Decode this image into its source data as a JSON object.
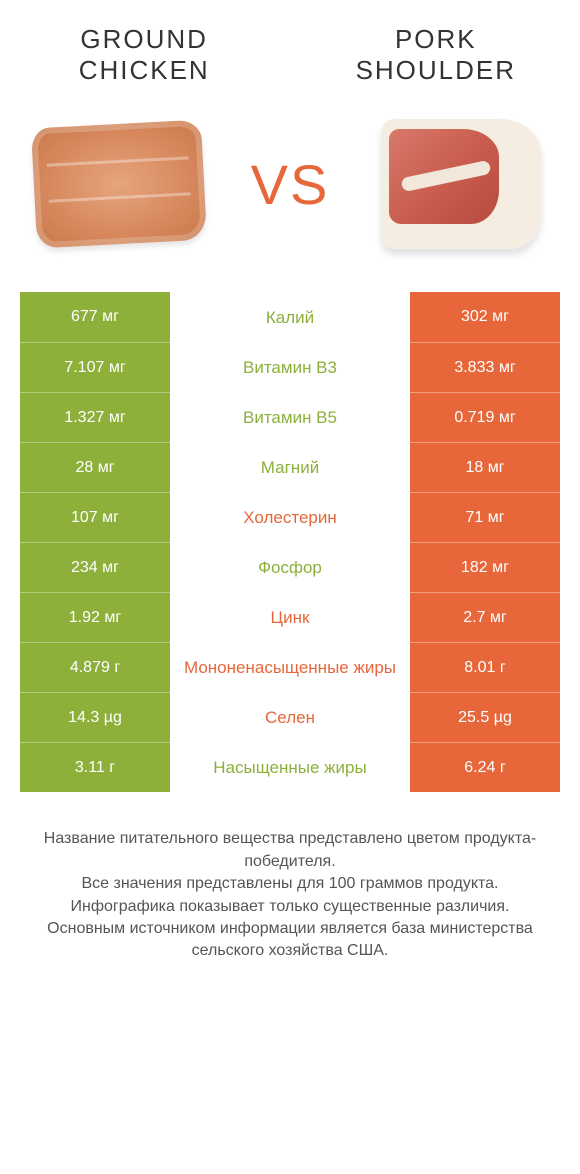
{
  "left_title": "Ground chicken",
  "right_title": "Pork shoulder",
  "vs": "VS",
  "colors": {
    "green": "#8db03b",
    "orange": "#e7673a",
    "page_bg": "#ffffff",
    "title_text": "#333333",
    "foot_text": "#555555"
  },
  "typography": {
    "title_fontsize": 26,
    "vs_fontsize": 56,
    "cell_fontsize": 16,
    "label_fontsize": 17,
    "foot_fontsize": 16
  },
  "rows": [
    {
      "left": "677 мг",
      "label": "Калий",
      "label_color": "green",
      "right": "302 мг"
    },
    {
      "left": "7.107 мг",
      "label": "Витамин B3",
      "label_color": "green",
      "right": "3.833 мг"
    },
    {
      "left": "1.327 мг",
      "label": "Витамин B5",
      "label_color": "green",
      "right": "0.719 мг"
    },
    {
      "left": "28 мг",
      "label": "Магний",
      "label_color": "green",
      "right": "18 мг"
    },
    {
      "left": "107 мг",
      "label": "Холестерин",
      "label_color": "orange",
      "right": "71 мг"
    },
    {
      "left": "234 мг",
      "label": "Фосфор",
      "label_color": "green",
      "right": "182 мг"
    },
    {
      "left": "1.92 мг",
      "label": "Цинк",
      "label_color": "orange",
      "right": "2.7 мг"
    },
    {
      "left": "4.879 г",
      "label": "Мононенасыщенные жиры",
      "label_color": "orange",
      "right": "8.01 г"
    },
    {
      "left": "14.3 µg",
      "label": "Селен",
      "label_color": "orange",
      "right": "25.5 µg"
    },
    {
      "left": "3.11 г",
      "label": "Насыщенные жиры",
      "label_color": "green",
      "right": "6.24 г"
    }
  ],
  "footnote": "Название питательного вещества представлено цветом продукта-победителя.\nВсе значения представлены для 100 граммов продукта.\nИнфографика показывает только существенные различия.\nОсновным источником информации является база министерства сельского хозяйства США."
}
